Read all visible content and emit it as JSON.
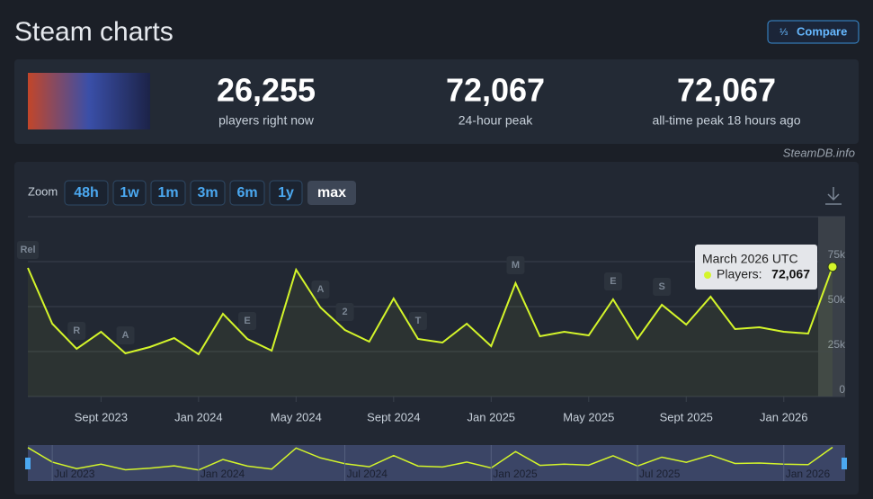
{
  "header": {
    "title": "Steam charts",
    "compare": "Compare"
  },
  "stats": [
    {
      "value": "26,255",
      "label": "players right now"
    },
    {
      "value": "72,067",
      "label": "24-hour peak"
    },
    {
      "value": "72,067",
      "label": "all-time peak 18 hours ago"
    }
  ],
  "credit": "SteamDB.info",
  "zoom": {
    "label": "Zoom",
    "buttons": [
      "48h",
      "1w",
      "1m",
      "3m",
      "6m",
      "1y",
      "max"
    ]
  },
  "chart_data": {
    "type": "line",
    "x": [
      "2023-06",
      "2023-07",
      "2023-08",
      "2023-09",
      "2023-10",
      "2023-11",
      "2023-12",
      "2024-01",
      "2024-02",
      "2024-03",
      "2024-04",
      "2024-05",
      "2024-06",
      "2024-07",
      "2024-08",
      "2024-09",
      "2024-10",
      "2024-11",
      "2024-12",
      "2025-01",
      "2025-02",
      "2025-03",
      "2025-04",
      "2025-05",
      "2025-06",
      "2025-07",
      "2025-08",
      "2025-09",
      "2025-10",
      "2025-11",
      "2025-12",
      "2026-01",
      "2026-02",
      "2026-03"
    ],
    "series": [
      {
        "name": "Players",
        "color": "#d4f52a",
        "values": [
          71500,
          40500,
          26500,
          36000,
          24000,
          27500,
          32500,
          23500,
          46000,
          32000,
          25500,
          70500,
          49500,
          37000,
          30500,
          54500,
          32000,
          30000,
          40500,
          28000,
          63000,
          33500,
          36000,
          34000,
          54000,
          32000,
          51000,
          40000,
          55500,
          37500,
          38500,
          36000,
          35000,
          72067
        ],
        "value_labels": [
          null,
          null,
          null,
          null,
          null,
          null,
          null,
          null,
          null,
          null,
          null,
          null,
          null,
          null,
          null,
          null,
          null,
          null,
          null,
          null,
          null,
          null,
          null,
          null,
          null,
          null,
          null,
          null,
          null,
          null,
          null,
          null,
          null,
          "72,067"
        ]
      }
    ],
    "xlim": [
      "2023-06",
      "2026-03"
    ],
    "xticks": [
      {
        "value": "2023-09",
        "label": "Sept 2023"
      },
      {
        "value": "2024-01",
        "label": "Jan 2024"
      },
      {
        "value": "2024-05",
        "label": "May 2024"
      },
      {
        "value": "2024-09",
        "label": "Sept 2024"
      },
      {
        "value": "2025-01",
        "label": "Jan 2025"
      },
      {
        "value": "2025-05",
        "label": "May 2025"
      },
      {
        "value": "2025-09",
        "label": "Sept 2025"
      },
      {
        "value": "2026-01",
        "label": "Jan 2026"
      }
    ],
    "ylim": [
      0,
      100000
    ],
    "yticks": [
      {
        "value": 0,
        "label": "0"
      },
      {
        "value": 25000,
        "label": "25k"
      },
      {
        "value": 50000,
        "label": "50k"
      },
      {
        "value": 75000,
        "label": "75k"
      }
    ],
    "grid": true,
    "annotations": [
      {
        "label": "Rel",
        "x": "2023-06"
      },
      {
        "label": "R",
        "x": "2023-08"
      },
      {
        "label": "A",
        "x": "2023-10"
      },
      {
        "label": "E",
        "x": "2024-03"
      },
      {
        "label": "A",
        "x": "2024-06"
      },
      {
        "label": "2",
        "x": "2024-07"
      },
      {
        "label": "T",
        "x": "2024-10"
      },
      {
        "label": "M",
        "x": "2025-02"
      },
      {
        "label": "E",
        "x": "2025-06"
      },
      {
        "label": "S",
        "x": "2025-08"
      }
    ],
    "tooltip": {
      "title": "March 2026 UTC",
      "label": "Players:"
    },
    "navigator": {
      "ticks": [
        {
          "value": "2023-07",
          "label": "Jul 2023"
        },
        {
          "value": "2024-01",
          "label": "Jan 2024"
        },
        {
          "value": "2024-07",
          "label": "Jul 2024"
        },
        {
          "value": "2025-01",
          "label": "Jan 2025"
        },
        {
          "value": "2025-07",
          "label": "Jul 2025"
        },
        {
          "value": "2026-01",
          "label": "Jan 2026"
        }
      ]
    }
  }
}
